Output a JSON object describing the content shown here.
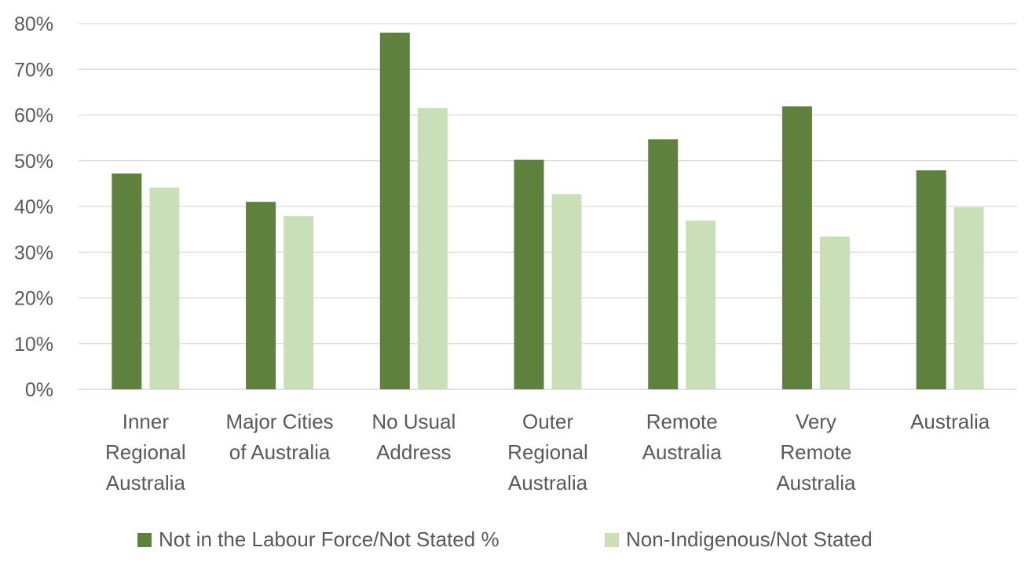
{
  "chart_data": {
    "type": "bar",
    "title": "",
    "xlabel": "",
    "ylabel": "",
    "ylim": [
      0,
      80
    ],
    "y_ticks": [
      "0%",
      "10%",
      "20%",
      "30%",
      "40%",
      "50%",
      "60%",
      "70%",
      "80%"
    ],
    "grid": true,
    "legend_position": "bottom",
    "categories": [
      [
        "Inner",
        "Regional",
        "Australia"
      ],
      [
        "Major Cities",
        "of Australia"
      ],
      [
        "No Usual",
        "Address"
      ],
      [
        "Outer",
        "Regional",
        "Australia"
      ],
      [
        "Remote",
        "Australia"
      ],
      [
        "Very",
        "Remote",
        "Australia"
      ],
      [
        "Australia"
      ]
    ],
    "series": [
      {
        "name": "Not in the Labour Force/Not Stated %",
        "color": "#5e813e",
        "values": [
          47.2,
          41.0,
          78.0,
          50.2,
          54.7,
          61.9,
          47.9
        ]
      },
      {
        "name": "Non-Indigenous/Not Stated",
        "color": "#c8dfb8",
        "values": [
          44.1,
          37.9,
          61.5,
          42.7,
          36.9,
          33.4,
          39.8
        ]
      }
    ]
  }
}
